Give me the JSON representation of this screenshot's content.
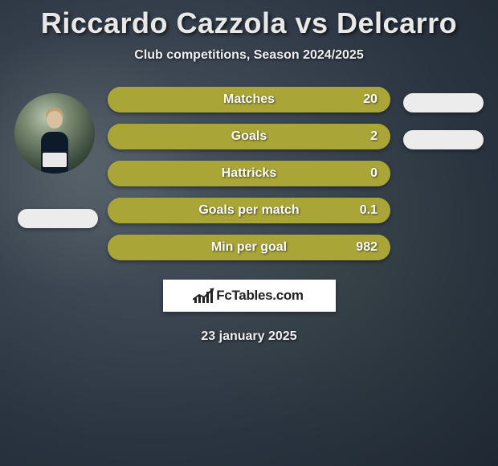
{
  "title": "Riccardo Cazzola vs Delcarro",
  "subtitle": "Club competitions, Season 2024/2025",
  "date": "23 january 2025",
  "logo_text": "FcTables.com",
  "colors": {
    "title": "#e8e8e8",
    "text": "#f0f0f0",
    "bar_fill": "#a9a537",
    "bar_track": "#b6b24a",
    "stat_text": "#ffffff",
    "pill": "#ececec",
    "logo_bg": "#ffffff",
    "logo_text": "#222222"
  },
  "stats": [
    {
      "label": "Matches",
      "value": "20",
      "fill_pct": 100
    },
    {
      "label": "Goals",
      "value": "2",
      "fill_pct": 100
    },
    {
      "label": "Hattricks",
      "value": "0",
      "fill_pct": 100
    },
    {
      "label": "Goals per match",
      "value": "0.1",
      "fill_pct": 100
    },
    {
      "label": "Min per goal",
      "value": "982",
      "fill_pct": 100
    }
  ],
  "logo_bars_heights": [
    6,
    10,
    8,
    14,
    18
  ]
}
